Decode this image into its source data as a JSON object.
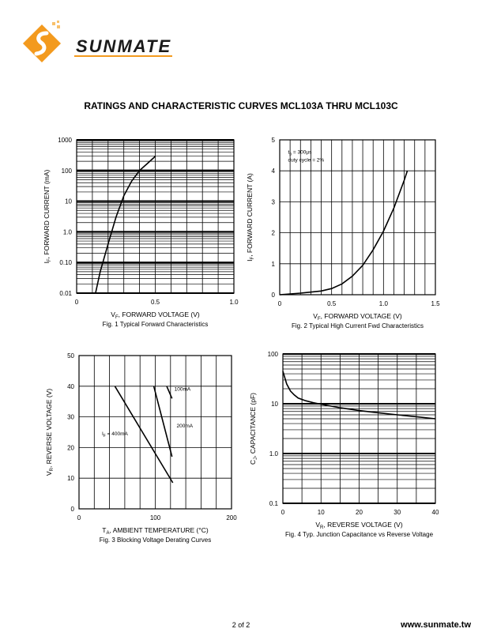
{
  "header": {
    "logo_text": "SUNMATE"
  },
  "page_title": "RATINGS AND CHARACTERISTIC CURVES MCL103A THRU MCL103C",
  "chart_data": [
    {
      "id": "fig1",
      "type": "line",
      "caption": "Fig. 1  Typical Forward Characteristics",
      "xlabel": {
        "sym": "V",
        "sub": "F",
        "rest": ", FORWARD VOLTAGE (V)"
      },
      "ylabel": {
        "sym": "I",
        "sub": "F",
        "rest": ", FORWARD CURRENT (mA)"
      },
      "xlim": [
        0,
        1.0
      ],
      "ylim": [
        0.01,
        1000
      ],
      "yscale": "log",
      "xticks": [
        0,
        0.5,
        1.0
      ],
      "xtick_labels": [
        "0",
        "0.5",
        "1.0"
      ],
      "yticks": [
        0.01,
        0.1,
        1,
        10,
        100,
        1000
      ],
      "ytick_labels": [
        "0.01",
        "0.10",
        "1.0",
        "10",
        "100",
        "1000"
      ],
      "grid": true,
      "series": [
        {
          "x": [
            0.12,
            0.15,
            0.2,
            0.25,
            0.3,
            0.35,
            0.4,
            0.45,
            0.5
          ],
          "y": [
            0.01,
            0.05,
            0.4,
            3,
            15,
            45,
            100,
            170,
            290
          ]
        }
      ],
      "annotations": []
    },
    {
      "id": "fig2",
      "type": "line",
      "caption": "Fig. 2  Typical High Current Fwd Characteristics",
      "xlabel": {
        "sym": "V",
        "sub": "F",
        "rest": ", FORWARD VOLTAGE (V)"
      },
      "ylabel": {
        "sym": "I",
        "sub": "F",
        "rest": ", FORWARD CURRENT (A)"
      },
      "xlim": [
        0,
        1.5
      ],
      "ylim": [
        0,
        5
      ],
      "yscale": "linear",
      "xticks": [
        0,
        0.5,
        1.0,
        1.5
      ],
      "xtick_labels": [
        "0",
        "0.5",
        "1.0",
        "1.5"
      ],
      "yticks": [
        0,
        1,
        2,
        3,
        4,
        5
      ],
      "ytick_labels": [
        "0",
        "1",
        "2",
        "3",
        "4",
        "5"
      ],
      "grid": true,
      "series": [
        {
          "x": [
            0,
            0.2,
            0.4,
            0.5,
            0.6,
            0.7,
            0.8,
            0.9,
            1.0,
            1.1,
            1.2,
            1.23
          ],
          "y": [
            0,
            0.05,
            0.12,
            0.2,
            0.35,
            0.6,
            0.95,
            1.45,
            2.05,
            2.8,
            3.7,
            4.0
          ]
        }
      ],
      "annotations": [
        {
          "sym": "t",
          "sub": "p",
          "rest": " = 300µs",
          "x": 0.08,
          "y": 4.55
        },
        {
          "sym": "duty cycle = 2%",
          "sub": "",
          "rest": "",
          "x": 0.08,
          "y": 4.3
        }
      ]
    },
    {
      "id": "fig3",
      "type": "line",
      "caption": "Fig. 3  Blocking Voltage Derating Curves",
      "xlabel": {
        "sym": "T",
        "sub": "A",
        "rest": ", AMBIENT TEMPERATURE (°C)"
      },
      "ylabel": {
        "sym": "V",
        "sub": "R",
        "rest": ", REVERSE VOLTAGE (V)"
      },
      "xlim": [
        0,
        200
      ],
      "ylim": [
        0,
        50
      ],
      "yscale": "linear",
      "xticks": [
        0,
        100,
        200
      ],
      "xtick_labels": [
        "0",
        "100",
        "200"
      ],
      "yticks": [
        0,
        10,
        20,
        30,
        40,
        50
      ],
      "ytick_labels": [
        "0",
        "10",
        "20",
        "30",
        "40",
        "50"
      ],
      "grid": true,
      "series": [
        {
          "name": "100mA",
          "x": [
            115,
            122
          ],
          "y": [
            40,
            36
          ]
        },
        {
          "name": "200mA",
          "x": [
            98,
            122
          ],
          "y": [
            40,
            17
          ]
        },
        {
          "name": "400mA",
          "x": [
            47,
            123
          ],
          "y": [
            40,
            8.5
          ]
        }
      ],
      "annotations": [
        {
          "sym": "100mA",
          "sub": "",
          "rest": "",
          "x": 125,
          "y": 38.5
        },
        {
          "sym": "200mA",
          "sub": "",
          "rest": "",
          "x": 128,
          "y": 26.5
        },
        {
          "sym": "I",
          "sub": "F",
          "rest": " = 400mA",
          "x": 30,
          "y": 24
        }
      ]
    },
    {
      "id": "fig4",
      "type": "line",
      "caption": "Fig. 4 Typ. Junction Capacitance vs Reverse Voltage",
      "xlabel": {
        "sym": "V",
        "sub": "R",
        "rest": ", REVERSE VOLTAGE (V)"
      },
      "ylabel": {
        "sym": "C",
        "sub": "J",
        "rest": ", CAPACITANCE (pF)"
      },
      "xlim": [
        0,
        40
      ],
      "ylim": [
        0.1,
        100
      ],
      "yscale": "log",
      "xticks": [
        0,
        10,
        20,
        30,
        40
      ],
      "xtick_labels": [
        "0",
        "10",
        "20",
        "30",
        "40"
      ],
      "yticks": [
        0.1,
        1,
        10,
        100
      ],
      "ytick_labels": [
        "0.1",
        "1.0",
        "10",
        "100"
      ],
      "grid": true,
      "series": [
        {
          "x": [
            0,
            1,
            2,
            3,
            4,
            6,
            8,
            10,
            15,
            20,
            25,
            30,
            35,
            40
          ],
          "y": [
            45,
            25,
            18,
            15,
            13,
            11.5,
            10.5,
            9.8,
            8.3,
            7.3,
            6.6,
            6.0,
            5.5,
            5.0
          ]
        }
      ],
      "annotations": []
    }
  ],
  "footer": {
    "page_number": "2 of 2",
    "url": "www.sunmate.tw"
  }
}
